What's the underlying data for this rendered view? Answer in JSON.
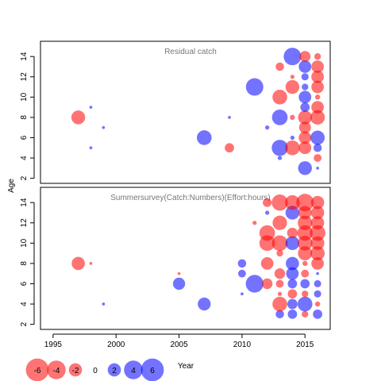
{
  "chart_data": {
    "type": "scatter",
    "bubble_chart": true,
    "xlabel": "Year",
    "ylabel": "Age",
    "xlim": [
      1994,
      2017
    ],
    "ylim": [
      1.5,
      15.5
    ],
    "x_ticks": [
      1995,
      2000,
      2005,
      2010,
      2015
    ],
    "y_ticks": [
      2,
      4,
      6,
      8,
      10,
      12,
      14
    ],
    "colors": {
      "negative": "#ff0000",
      "positive": "#0000ff",
      "opacity": 0.55
    },
    "legend": {
      "placement": "bottom-left",
      "values": [
        -6,
        -4,
        -2,
        0,
        2,
        4,
        6
      ],
      "labels": [
        "-6",
        "-4",
        "-2",
        "0",
        "2",
        "4",
        "6"
      ]
    },
    "panels": [
      {
        "title": "Residual catch",
        "points": [
          {
            "x": 1997,
            "y": 8,
            "v": -2.2
          },
          {
            "x": 1998,
            "y": 5,
            "v": 0.1
          },
          {
            "x": 1998,
            "y": 9,
            "v": 0.1
          },
          {
            "x": 1999,
            "y": 7,
            "v": 0.1
          },
          {
            "x": 2007,
            "y": 6,
            "v": 2.5
          },
          {
            "x": 2009,
            "y": 5,
            "v": -1.0
          },
          {
            "x": 2009,
            "y": 8,
            "v": 0.1
          },
          {
            "x": 2011,
            "y": 11,
            "v": 3.5
          },
          {
            "x": 2012,
            "y": 7,
            "v": 0.2
          },
          {
            "x": 2013,
            "y": 4,
            "v": 0.2
          },
          {
            "x": 2013,
            "y": 5,
            "v": 3.0
          },
          {
            "x": 2013,
            "y": 8,
            "v": 2.8
          },
          {
            "x": 2013,
            "y": 10,
            "v": -2.5
          },
          {
            "x": 2013,
            "y": 13,
            "v": -0.8
          },
          {
            "x": 2014,
            "y": 5,
            "v": -2.5
          },
          {
            "x": 2014,
            "y": 6,
            "v": 0.2
          },
          {
            "x": 2014,
            "y": 8,
            "v": -0.3
          },
          {
            "x": 2014,
            "y": 11,
            "v": -2.2
          },
          {
            "x": 2014,
            "y": 12,
            "v": -0.2
          },
          {
            "x": 2014,
            "y": 14,
            "v": 3.5
          },
          {
            "x": 2015,
            "y": 3,
            "v": 2.2
          },
          {
            "x": 2015,
            "y": 5,
            "v": -1.8
          },
          {
            "x": 2015,
            "y": 6,
            "v": -1.8
          },
          {
            "x": 2015,
            "y": 7,
            "v": -1.6
          },
          {
            "x": 2015,
            "y": 8,
            "v": -2.2
          },
          {
            "x": 2015,
            "y": 9,
            "v": 1.0
          },
          {
            "x": 2015,
            "y": 10,
            "v": 1.8
          },
          {
            "x": 2015,
            "y": 11,
            "v": 0.5
          },
          {
            "x": 2015,
            "y": 12,
            "v": 0.6
          },
          {
            "x": 2015,
            "y": 13,
            "v": 1.8
          },
          {
            "x": 2015,
            "y": 14,
            "v": -1.4
          },
          {
            "x": 2016,
            "y": 3,
            "v": 0.1
          },
          {
            "x": 2016,
            "y": 4,
            "v": -0.7
          },
          {
            "x": 2016,
            "y": 5,
            "v": 0.8
          },
          {
            "x": 2016,
            "y": 6,
            "v": 2.3
          },
          {
            "x": 2016,
            "y": 8,
            "v": -2.4
          },
          {
            "x": 2016,
            "y": 9,
            "v": -1.8
          },
          {
            "x": 2016,
            "y": 10,
            "v": -0.3
          },
          {
            "x": 2016,
            "y": 11,
            "v": -1.8
          },
          {
            "x": 2016,
            "y": 12,
            "v": -1.8
          },
          {
            "x": 2016,
            "y": 13,
            "v": -1.8
          },
          {
            "x": 2016,
            "y": 14,
            "v": -0.5
          }
        ]
      },
      {
        "title": "Summersurvey(Catch:Numbers)(Effort:hours)",
        "points": [
          {
            "x": 1997,
            "y": 8,
            "v": -2.0
          },
          {
            "x": 1998,
            "y": 8,
            "v": -0.1
          },
          {
            "x": 1999,
            "y": 4,
            "v": 0.1
          },
          {
            "x": 2005,
            "y": 6,
            "v": 1.7
          },
          {
            "x": 2005,
            "y": 7,
            "v": -0.1
          },
          {
            "x": 2007,
            "y": 4,
            "v": 1.9
          },
          {
            "x": 2010,
            "y": 5,
            "v": 0.1
          },
          {
            "x": 2010,
            "y": 7,
            "v": 0.7
          },
          {
            "x": 2010,
            "y": 8,
            "v": 0.8
          },
          {
            "x": 2011,
            "y": 6,
            "v": 3.6
          },
          {
            "x": 2011,
            "y": 12,
            "v": -0.2
          },
          {
            "x": 2012,
            "y": 6,
            "v": -1.3
          },
          {
            "x": 2012,
            "y": 8,
            "v": -1.8
          },
          {
            "x": 2012,
            "y": 10,
            "v": -2.8
          },
          {
            "x": 2012,
            "y": 11,
            "v": -2.8
          },
          {
            "x": 2012,
            "y": 13,
            "v": 0.2
          },
          {
            "x": 2012,
            "y": 14,
            "v": -0.9
          },
          {
            "x": 2013,
            "y": 3,
            "v": 0.8
          },
          {
            "x": 2013,
            "y": 4,
            "v": -2.5
          },
          {
            "x": 2013,
            "y": 5,
            "v": -0.2
          },
          {
            "x": 2013,
            "y": 6,
            "v": -0.7
          },
          {
            "x": 2013,
            "y": 7,
            "v": -1.3
          },
          {
            "x": 2013,
            "y": 9,
            "v": -0.5
          },
          {
            "x": 2013,
            "y": 10,
            "v": -2.8
          },
          {
            "x": 2013,
            "y": 12,
            "v": -2.4
          },
          {
            "x": 2013,
            "y": 14,
            "v": -3.0
          },
          {
            "x": 2014,
            "y": 3,
            "v": 1.0
          },
          {
            "x": 2014,
            "y": 4,
            "v": 1.2
          },
          {
            "x": 2014,
            "y": 5,
            "v": -1.0
          },
          {
            "x": 2014,
            "y": 6,
            "v": 1.0
          },
          {
            "x": 2014,
            "y": 7,
            "v": 1.8
          },
          {
            "x": 2014,
            "y": 8,
            "v": 2.0
          },
          {
            "x": 2014,
            "y": 10,
            "v": 2.2
          },
          {
            "x": 2014,
            "y": 11,
            "v": -1.3
          },
          {
            "x": 2014,
            "y": 13,
            "v": 2.2
          },
          {
            "x": 2014,
            "y": 14,
            "v": -2.5
          },
          {
            "x": 2015,
            "y": 3,
            "v": -0.5
          },
          {
            "x": 2015,
            "y": 4,
            "v": 2.5
          },
          {
            "x": 2015,
            "y": 5,
            "v": -0.5
          },
          {
            "x": 2015,
            "y": 6,
            "v": 1.0
          },
          {
            "x": 2015,
            "y": 7,
            "v": -0.7
          },
          {
            "x": 2015,
            "y": 8,
            "v": -0.3
          },
          {
            "x": 2015,
            "y": 9,
            "v": -2.3
          },
          {
            "x": 2015,
            "y": 10,
            "v": -2.5
          },
          {
            "x": 2015,
            "y": 11,
            "v": -2.7
          },
          {
            "x": 2015,
            "y": 12,
            "v": -2.4
          },
          {
            "x": 2015,
            "y": 13,
            "v": -2.0
          },
          {
            "x": 2015,
            "y": 14,
            "v": -3.5
          },
          {
            "x": 2016,
            "y": 3,
            "v": 1.0
          },
          {
            "x": 2016,
            "y": 4,
            "v": -0.3
          },
          {
            "x": 2016,
            "y": 5,
            "v": 0.6
          },
          {
            "x": 2016,
            "y": 6,
            "v": 0.6
          },
          {
            "x": 2016,
            "y": 7,
            "v": 0.1
          },
          {
            "x": 2016,
            "y": 8,
            "v": -1.8
          },
          {
            "x": 2016,
            "y": 9,
            "v": -2.3
          },
          {
            "x": 2016,
            "y": 10,
            "v": -2.1
          },
          {
            "x": 2016,
            "y": 11,
            "v": -2.8
          },
          {
            "x": 2016,
            "y": 12,
            "v": -2.0
          },
          {
            "x": 2016,
            "y": 13,
            "v": -2.0
          },
          {
            "x": 2016,
            "y": 14,
            "v": -2.0
          }
        ]
      }
    ]
  }
}
